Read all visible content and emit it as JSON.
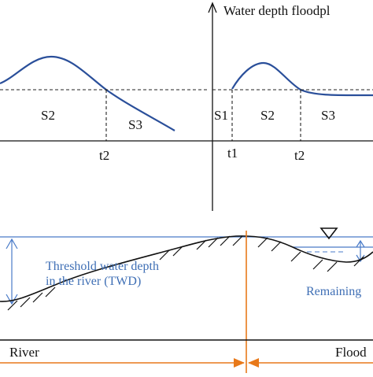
{
  "top_left_panel": {
    "segment_labels": [
      "S2",
      "S3"
    ],
    "time_label": "t2"
  },
  "top_right_panel": {
    "axis_title": "Water depth floodpl",
    "segment_labels": [
      "S1",
      "S2",
      "S3"
    ],
    "time_labels": [
      "t1",
      "t2"
    ]
  },
  "bottom_panel": {
    "twd_line1": "Threshold water depth",
    "twd_line2": "in the river (TWD)",
    "remaining_label": "Remaining",
    "river_label": "River",
    "floodplain_label": "Flood"
  },
  "colors": {
    "curve": "#2a4f9a",
    "blue_text": "#3f6fb5",
    "water_line": "#4a7bc8",
    "divider": "#e8791a",
    "ink": "#111111"
  }
}
